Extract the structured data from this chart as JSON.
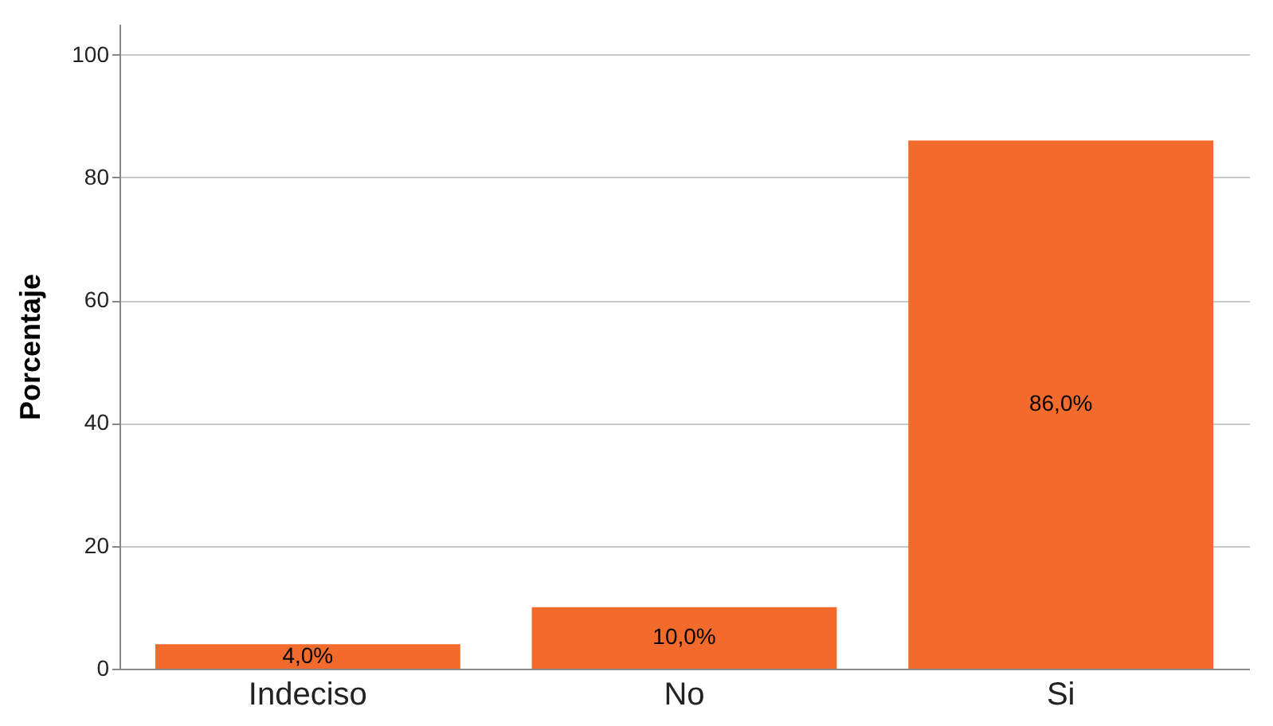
{
  "chart_data": {
    "type": "bar",
    "ylabel": "Porcentaje",
    "categories": [
      "Indeciso",
      "No",
      "Si"
    ],
    "values": [
      4,
      10,
      86
    ],
    "color": "#f26b2d",
    "value_labels": [
      "4,0%",
      "10,0%",
      "86,0%"
    ],
    "ylim": [
      0,
      105
    ],
    "yticks": [
      0,
      20,
      40,
      60,
      80,
      100
    ],
    "grid": "y"
  }
}
